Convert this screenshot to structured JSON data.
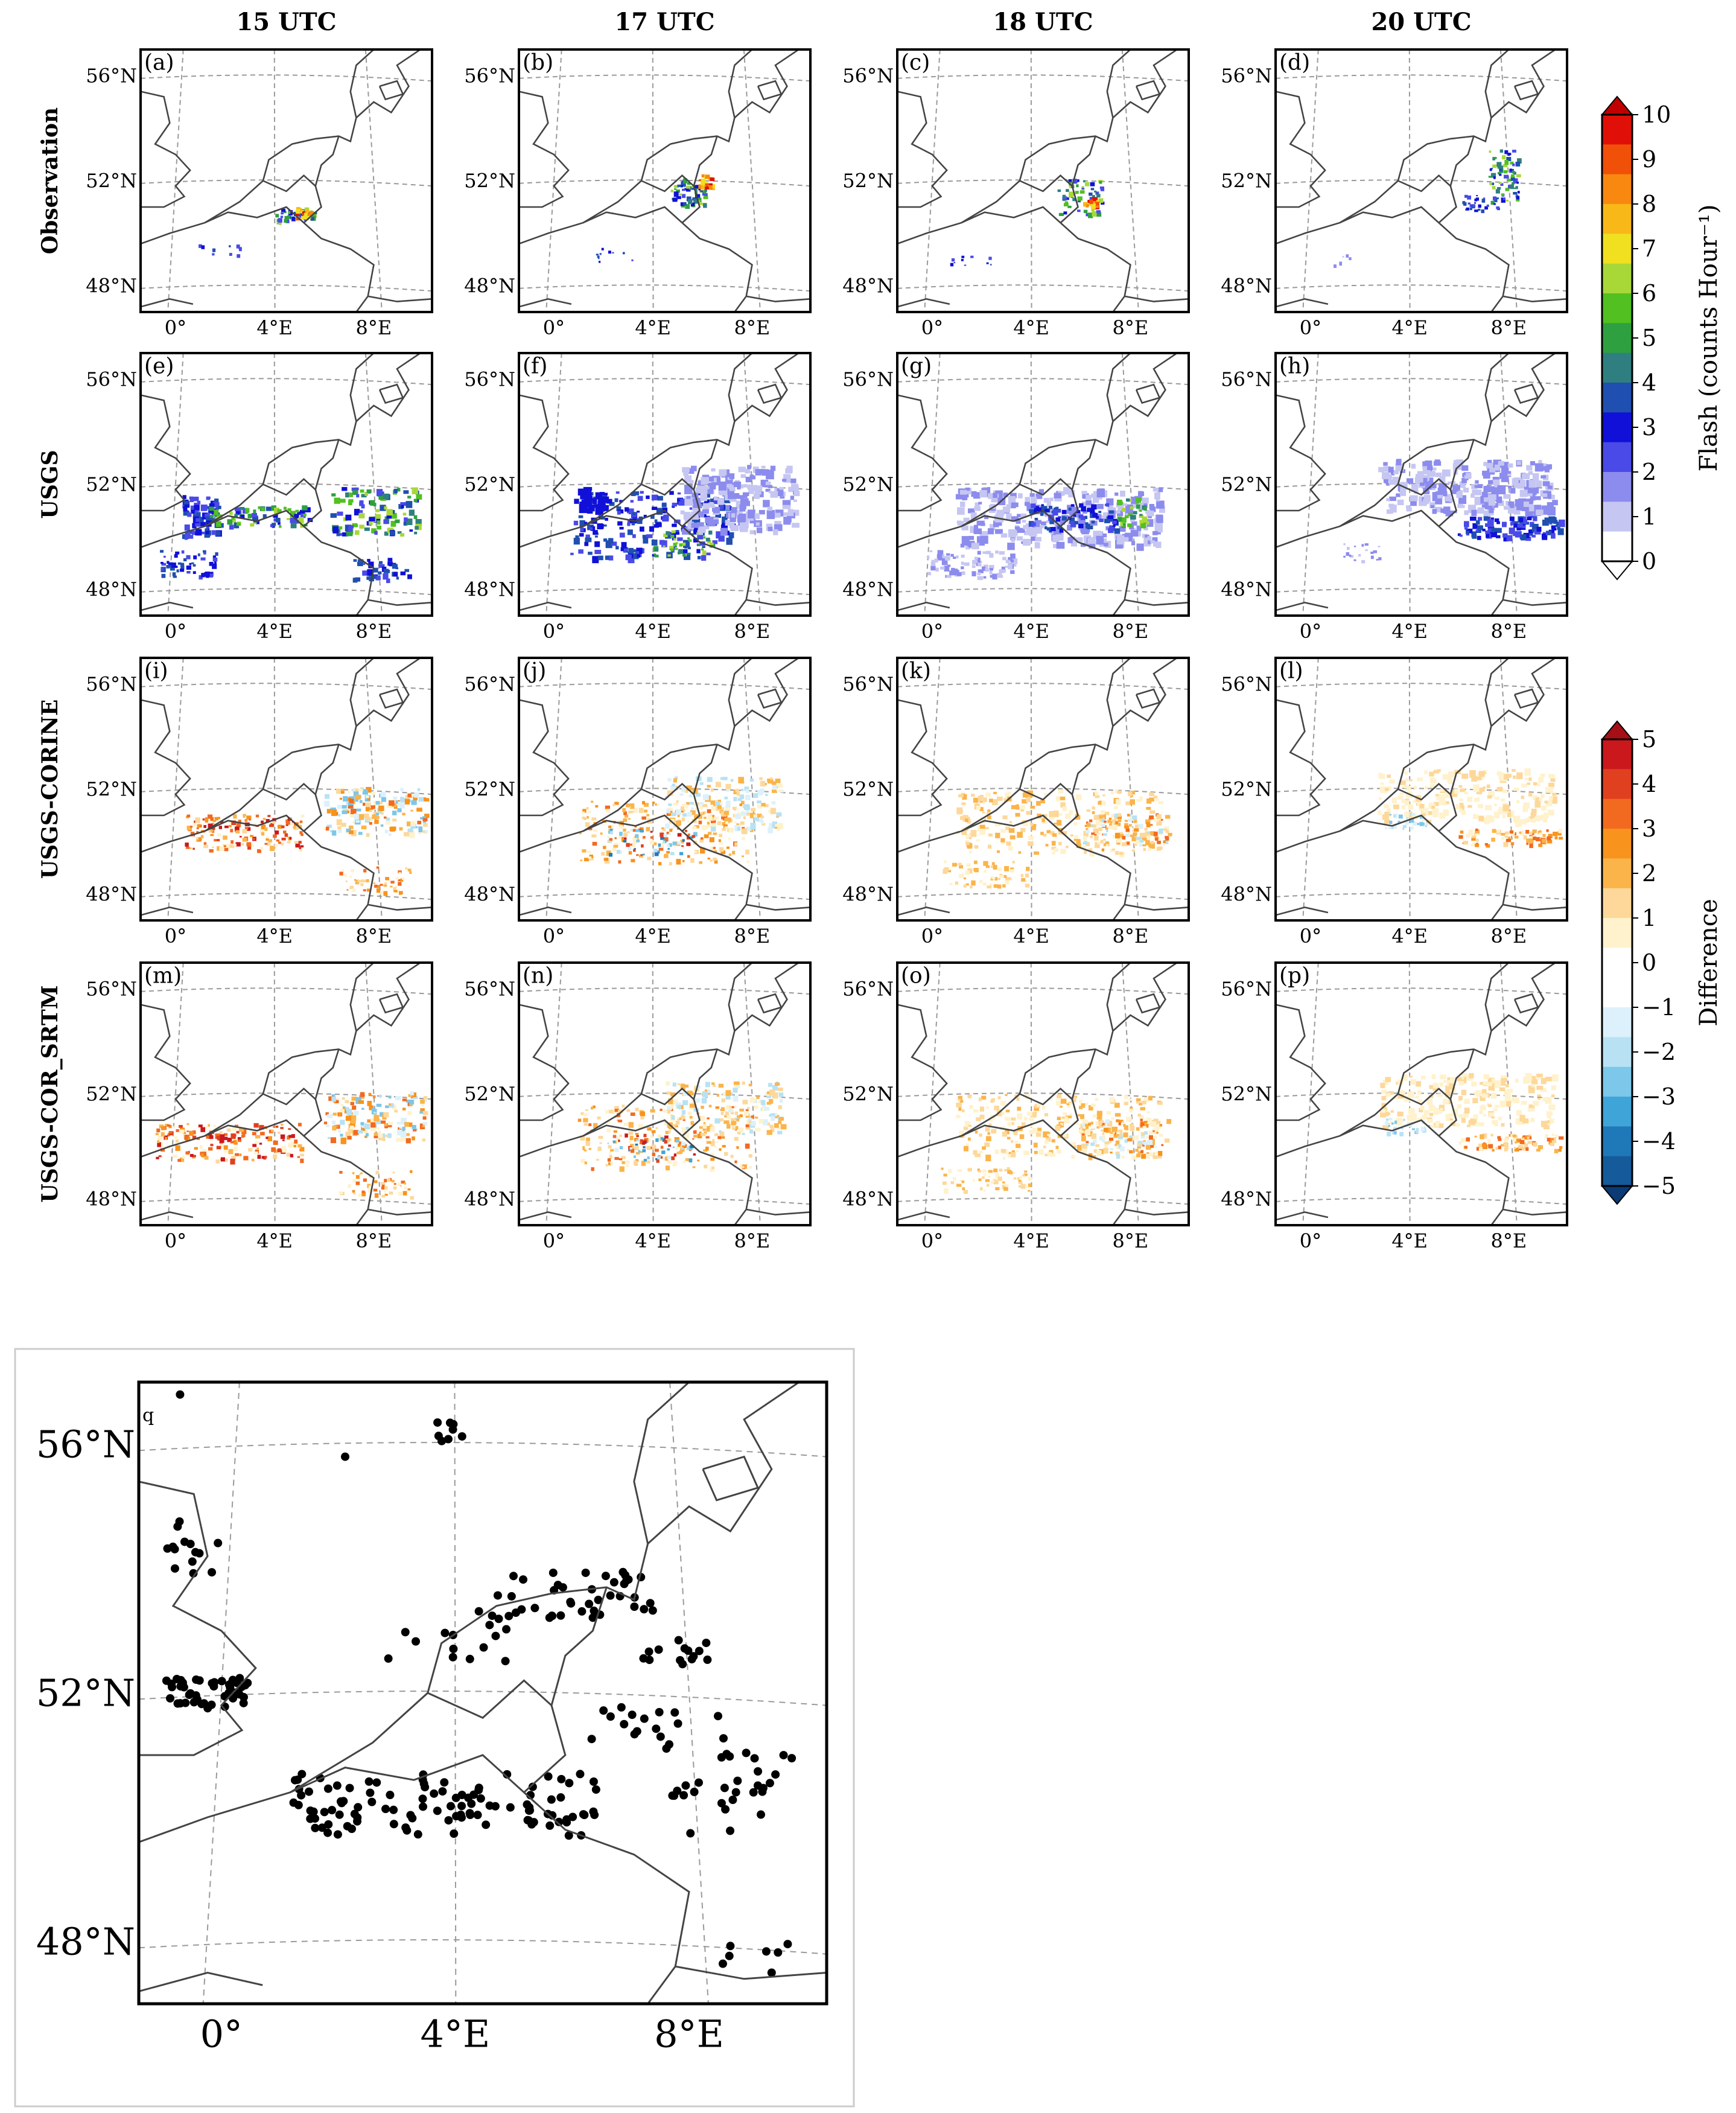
{
  "columns": [
    "15 UTC",
    "17 UTC",
    "18 UTC",
    "20 UTC"
  ],
  "rows": [
    "Observation",
    "USGS",
    "USGS-CORINE",
    "USGS-COR_SRTM"
  ],
  "panel_labels": [
    "(a)",
    "(b)",
    "(c)",
    "(d)",
    "(e)",
    "(f)",
    "(g)",
    "(h)",
    "(i)",
    "(j)",
    "(k)",
    "(l)",
    "(m)",
    "(n)",
    "(o)",
    "(p)"
  ],
  "big_panel_label": "q",
  "lat_ticks": [
    "56°N",
    "52°N",
    "48°N"
  ],
  "lon_ticks": [
    "0°",
    "4°E",
    "8°E"
  ],
  "colorbar_flash": {
    "label": "Flash (counts Hour⁻¹)",
    "ticks": [
      "0",
      "1",
      "2",
      "3",
      "4",
      "5",
      "6",
      "7",
      "8",
      "9",
      "10"
    ],
    "colors": [
      "#ffffff",
      "#c6c6f2",
      "#8c8cee",
      "#4a4ae8",
      "#1010d8",
      "#1f4fb0",
      "#2f7f80",
      "#2ea040",
      "#52c020",
      "#a8d838",
      "#f0e020",
      "#f8b818",
      "#f88810",
      "#f05008",
      "#e01008",
      "#c00000"
    ]
  },
  "colorbar_diff": {
    "label": "Difference",
    "ticks": [
      "5",
      "4",
      "3",
      "2",
      "1",
      "0",
      "−1",
      "−2",
      "−3",
      "−4",
      "−5"
    ],
    "colors": [
      "#a50f15",
      "#cb181d",
      "#e0401f",
      "#f26a20",
      "#f8931d",
      "#fbb44a",
      "#fdd89a",
      "#fff2cc",
      "#ffffff",
      "#ffffff",
      "#dcf1fb",
      "#b8e2f4",
      "#7cc7ea",
      "#3fa4d8",
      "#1f78b8",
      "#155a9a",
      "#0b3a75"
    ]
  },
  "colors": {
    "outline": "#000000",
    "grid": "#9a9a9a",
    "coast": "#444444",
    "figure_border": "#cccccc"
  }
}
